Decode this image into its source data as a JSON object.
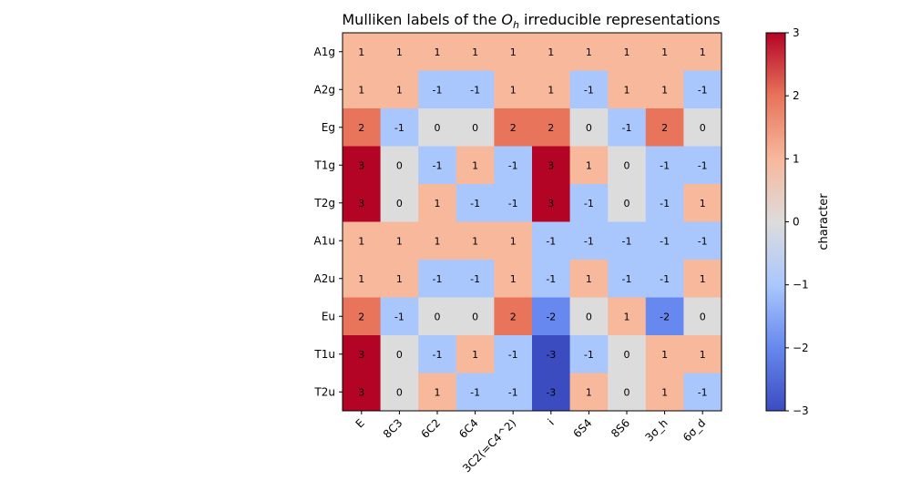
{
  "chart_data": {
    "type": "heatmap",
    "title_prefix": "Mulliken labels of the ",
    "title_math": "O",
    "title_sub": "h",
    "title_suffix": " irreducible representations",
    "x_categories": [
      "E",
      "8C3",
      "6C2",
      "6C4",
      "3C2(=C4^2)",
      "i",
      "6S4",
      "8S6",
      "3σ_h",
      "6σ_d"
    ],
    "y_categories": [
      "A1g",
      "A2g",
      "Eg",
      "T1g",
      "T2g",
      "A1u",
      "A2u",
      "Eu",
      "T1u",
      "T2u"
    ],
    "values": [
      [
        1,
        1,
        1,
        1,
        1,
        1,
        1,
        1,
        1,
        1
      ],
      [
        1,
        1,
        -1,
        -1,
        1,
        1,
        -1,
        1,
        1,
        -1
      ],
      [
        2,
        -1,
        0,
        0,
        2,
        2,
        0,
        -1,
        2,
        0
      ],
      [
        3,
        0,
        -1,
        1,
        -1,
        3,
        1,
        0,
        -1,
        -1
      ],
      [
        3,
        0,
        1,
        -1,
        -1,
        3,
        -1,
        0,
        -1,
        1
      ],
      [
        1,
        1,
        1,
        1,
        1,
        -1,
        -1,
        -1,
        -1,
        -1
      ],
      [
        1,
        1,
        -1,
        -1,
        1,
        -1,
        1,
        -1,
        -1,
        1
      ],
      [
        2,
        -1,
        0,
        0,
        2,
        -2,
        0,
        1,
        -2,
        0
      ],
      [
        3,
        0,
        -1,
        1,
        -1,
        -3,
        -1,
        0,
        1,
        1
      ],
      [
        3,
        0,
        1,
        -1,
        -1,
        -3,
        1,
        0,
        1,
        -1
      ]
    ],
    "colormap": "coolwarm",
    "vmin": -3,
    "vmax": 3,
    "colorbar_label": "character",
    "colorbar_ticks": [
      "−3",
      "−2",
      "−1",
      "0",
      "1",
      "2",
      "3"
    ],
    "colorbar_tick_values": [
      -3,
      -2,
      -1,
      0,
      1,
      2,
      3
    ],
    "colors": {
      "neg3": "#3b4cc0",
      "neg2": "#6788ee",
      "neg1": "#aac7fd",
      "zero": "#dddcdc",
      "pos1": "#f7b89c",
      "pos2": "#e7745b",
      "pos3": "#b40426"
    }
  }
}
